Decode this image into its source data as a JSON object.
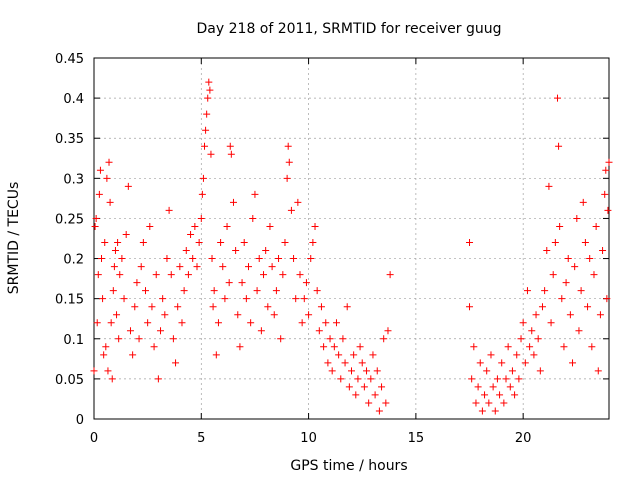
{
  "chart_data": {
    "type": "scatter",
    "title": "Day 218 of 2011, SRMTID for receiver guug",
    "xlabel": "GPS time / hours",
    "ylabel": "SRMTID / TECUs",
    "xlim": [
      0,
      24
    ],
    "ylim": [
      0,
      0.45
    ],
    "xticks": [
      0,
      5,
      10,
      15,
      20
    ],
    "xtick_labels": [
      "0",
      "5",
      "10",
      "15",
      "20"
    ],
    "yticks": [
      0,
      0.05,
      0.1,
      0.15,
      0.2,
      0.25,
      0.3,
      0.35,
      0.4,
      0.45
    ],
    "ytick_labels": [
      "0",
      "0.05",
      "0.1",
      "0.15",
      "0.2",
      "0.25",
      "0.3",
      "0.35",
      "0.4",
      "0.45"
    ],
    "grid": true,
    "marker": "plus",
    "series_color": "#ff0000",
    "series": [
      {
        "name": "SRMTID",
        "points": [
          [
            0.0,
            0.06
          ],
          [
            0.05,
            0.24
          ],
          [
            0.1,
            0.25
          ],
          [
            0.15,
            0.12
          ],
          [
            0.2,
            0.18
          ],
          [
            0.25,
            0.28
          ],
          [
            0.3,
            0.31
          ],
          [
            0.35,
            0.2
          ],
          [
            0.4,
            0.15
          ],
          [
            0.45,
            0.08
          ],
          [
            0.5,
            0.22
          ],
          [
            0.55,
            0.09
          ],
          [
            0.6,
            0.3
          ],
          [
            0.65,
            0.06
          ],
          [
            0.7,
            0.32
          ],
          [
            0.75,
            0.27
          ],
          [
            0.8,
            0.12
          ],
          [
            0.85,
            0.05
          ],
          [
            0.9,
            0.16
          ],
          [
            0.95,
            0.19
          ],
          [
            1.0,
            0.21
          ],
          [
            1.05,
            0.13
          ],
          [
            1.1,
            0.22
          ],
          [
            1.15,
            0.1
          ],
          [
            1.2,
            0.18
          ],
          [
            1.3,
            0.2
          ],
          [
            1.4,
            0.15
          ],
          [
            1.5,
            0.23
          ],
          [
            1.6,
            0.29
          ],
          [
            1.7,
            0.11
          ],
          [
            1.8,
            0.08
          ],
          [
            1.9,
            0.14
          ],
          [
            2.0,
            0.17
          ],
          [
            2.1,
            0.1
          ],
          [
            2.2,
            0.19
          ],
          [
            2.3,
            0.22
          ],
          [
            2.4,
            0.16
          ],
          [
            2.5,
            0.12
          ],
          [
            2.6,
            0.24
          ],
          [
            2.7,
            0.14
          ],
          [
            2.8,
            0.09
          ],
          [
            2.9,
            0.18
          ],
          [
            3.0,
            0.05
          ],
          [
            3.1,
            0.11
          ],
          [
            3.2,
            0.15
          ],
          [
            3.3,
            0.13
          ],
          [
            3.4,
            0.2
          ],
          [
            3.5,
            0.26
          ],
          [
            3.6,
            0.18
          ],
          [
            3.7,
            0.1
          ],
          [
            3.8,
            0.07
          ],
          [
            3.9,
            0.14
          ],
          [
            4.0,
            0.19
          ],
          [
            4.1,
            0.12
          ],
          [
            4.2,
            0.16
          ],
          [
            4.3,
            0.21
          ],
          [
            4.4,
            0.18
          ],
          [
            4.5,
            0.23
          ],
          [
            4.6,
            0.2
          ],
          [
            4.7,
            0.24
          ],
          [
            4.8,
            0.19
          ],
          [
            4.9,
            0.22
          ],
          [
            5.0,
            0.25
          ],
          [
            5.05,
            0.28
          ],
          [
            5.1,
            0.3
          ],
          [
            5.15,
            0.34
          ],
          [
            5.2,
            0.36
          ],
          [
            5.25,
            0.38
          ],
          [
            5.3,
            0.4
          ],
          [
            5.35,
            0.42
          ],
          [
            5.4,
            0.41
          ],
          [
            5.45,
            0.33
          ],
          [
            5.5,
            0.2
          ],
          [
            5.55,
            0.14
          ],
          [
            5.6,
            0.16
          ],
          [
            5.7,
            0.08
          ],
          [
            5.8,
            0.12
          ],
          [
            5.9,
            0.22
          ],
          [
            6.0,
            0.19
          ],
          [
            6.1,
            0.15
          ],
          [
            6.2,
            0.24
          ],
          [
            6.3,
            0.17
          ],
          [
            6.35,
            0.34
          ],
          [
            6.4,
            0.33
          ],
          [
            6.5,
            0.27
          ],
          [
            6.6,
            0.21
          ],
          [
            6.7,
            0.13
          ],
          [
            6.8,
            0.09
          ],
          [
            6.9,
            0.17
          ],
          [
            7.0,
            0.22
          ],
          [
            7.1,
            0.15
          ],
          [
            7.2,
            0.19
          ],
          [
            7.3,
            0.12
          ],
          [
            7.4,
            0.25
          ],
          [
            7.5,
            0.28
          ],
          [
            7.6,
            0.16
          ],
          [
            7.7,
            0.2
          ],
          [
            7.8,
            0.11
          ],
          [
            7.9,
            0.18
          ],
          [
            8.0,
            0.21
          ],
          [
            8.1,
            0.14
          ],
          [
            8.2,
            0.24
          ],
          [
            8.3,
            0.19
          ],
          [
            8.4,
            0.13
          ],
          [
            8.5,
            0.16
          ],
          [
            8.6,
            0.2
          ],
          [
            8.7,
            0.1
          ],
          [
            8.8,
            0.18
          ],
          [
            8.9,
            0.22
          ],
          [
            9.0,
            0.3
          ],
          [
            9.05,
            0.34
          ],
          [
            9.1,
            0.32
          ],
          [
            9.2,
            0.26
          ],
          [
            9.3,
            0.2
          ],
          [
            9.4,
            0.15
          ],
          [
            9.5,
            0.27
          ],
          [
            9.6,
            0.18
          ],
          [
            9.7,
            0.12
          ],
          [
            9.8,
            0.15
          ],
          [
            9.9,
            0.17
          ],
          [
            10.0,
            0.13
          ],
          [
            10.1,
            0.2
          ],
          [
            10.2,
            0.22
          ],
          [
            10.3,
            0.24
          ],
          [
            10.4,
            0.16
          ],
          [
            10.5,
            0.11
          ],
          [
            10.6,
            0.14
          ],
          [
            10.7,
            0.09
          ],
          [
            10.8,
            0.12
          ],
          [
            10.9,
            0.07
          ],
          [
            11.0,
            0.1
          ],
          [
            11.1,
            0.06
          ],
          [
            11.2,
            0.09
          ],
          [
            11.3,
            0.12
          ],
          [
            11.4,
            0.08
          ],
          [
            11.5,
            0.05
          ],
          [
            11.6,
            0.1
          ],
          [
            11.7,
            0.07
          ],
          [
            11.8,
            0.14
          ],
          [
            11.9,
            0.04
          ],
          [
            12.0,
            0.06
          ],
          [
            12.1,
            0.08
          ],
          [
            12.2,
            0.03
          ],
          [
            12.3,
            0.05
          ],
          [
            12.4,
            0.09
          ],
          [
            12.5,
            0.07
          ],
          [
            12.6,
            0.04
          ],
          [
            12.7,
            0.06
          ],
          [
            12.8,
            0.02
          ],
          [
            12.9,
            0.05
          ],
          [
            13.0,
            0.08
          ],
          [
            13.1,
            0.03
          ],
          [
            13.2,
            0.06
          ],
          [
            13.3,
            0.01
          ],
          [
            13.4,
            0.04
          ],
          [
            13.5,
            0.1
          ],
          [
            13.6,
            0.02
          ],
          [
            13.7,
            0.11
          ],
          [
            13.8,
            0.18
          ],
          [
            17.5,
            0.22
          ],
          [
            17.5,
            0.14
          ],
          [
            17.6,
            0.05
          ],
          [
            17.7,
            0.09
          ],
          [
            17.8,
            0.02
          ],
          [
            17.9,
            0.04
          ],
          [
            18.0,
            0.07
          ],
          [
            18.1,
            0.01
          ],
          [
            18.2,
            0.03
          ],
          [
            18.3,
            0.06
          ],
          [
            18.4,
            0.02
          ],
          [
            18.5,
            0.08
          ],
          [
            18.6,
            0.04
          ],
          [
            18.7,
            0.01
          ],
          [
            18.8,
            0.05
          ],
          [
            18.9,
            0.03
          ],
          [
            19.0,
            0.07
          ],
          [
            19.1,
            0.02
          ],
          [
            19.2,
            0.05
          ],
          [
            19.3,
            0.09
          ],
          [
            19.4,
            0.04
          ],
          [
            19.5,
            0.06
          ],
          [
            19.6,
            0.03
          ],
          [
            19.7,
            0.08
          ],
          [
            19.8,
            0.05
          ],
          [
            19.9,
            0.1
          ],
          [
            20.0,
            0.12
          ],
          [
            20.1,
            0.07
          ],
          [
            20.2,
            0.16
          ],
          [
            20.3,
            0.09
          ],
          [
            20.4,
            0.11
          ],
          [
            20.5,
            0.08
          ],
          [
            20.6,
            0.13
          ],
          [
            20.7,
            0.1
          ],
          [
            20.8,
            0.06
          ],
          [
            20.9,
            0.14
          ],
          [
            21.0,
            0.16
          ],
          [
            21.1,
            0.21
          ],
          [
            21.2,
            0.29
          ],
          [
            21.3,
            0.12
          ],
          [
            21.4,
            0.18
          ],
          [
            21.5,
            0.22
          ],
          [
            21.6,
            0.4
          ],
          [
            21.65,
            0.34
          ],
          [
            21.7,
            0.24
          ],
          [
            21.8,
            0.15
          ],
          [
            21.9,
            0.09
          ],
          [
            22.0,
            0.17
          ],
          [
            22.1,
            0.2
          ],
          [
            22.2,
            0.13
          ],
          [
            22.3,
            0.07
          ],
          [
            22.4,
            0.19
          ],
          [
            22.5,
            0.25
          ],
          [
            22.6,
            0.11
          ],
          [
            22.7,
            0.16
          ],
          [
            22.8,
            0.27
          ],
          [
            22.9,
            0.22
          ],
          [
            23.0,
            0.14
          ],
          [
            23.1,
            0.2
          ],
          [
            23.2,
            0.09
          ],
          [
            23.3,
            0.18
          ],
          [
            23.4,
            0.24
          ],
          [
            23.5,
            0.06
          ],
          [
            23.6,
            0.13
          ],
          [
            23.7,
            0.21
          ],
          [
            23.8,
            0.28
          ],
          [
            23.85,
            0.31
          ],
          [
            23.9,
            0.15
          ],
          [
            23.95,
            0.26
          ],
          [
            24.0,
            0.32
          ]
        ]
      }
    ]
  }
}
